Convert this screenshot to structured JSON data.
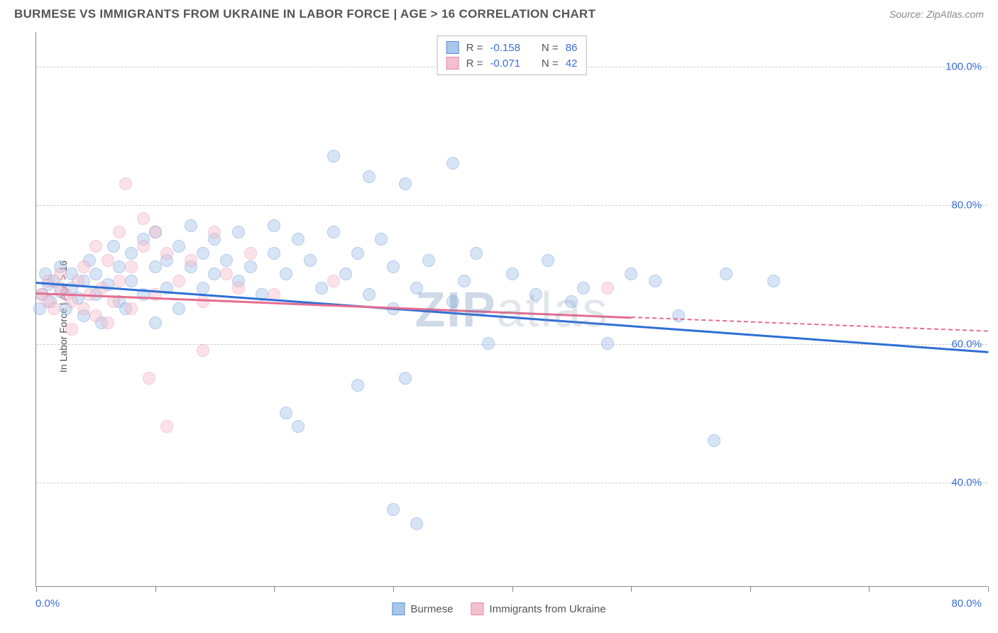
{
  "title": "BURMESE VS IMMIGRANTS FROM UKRAINE IN LABOR FORCE | AGE > 16 CORRELATION CHART",
  "source": "Source: ZipAtlas.com",
  "y_axis_title": "In Labor Force | Age > 16",
  "watermark_bold": "ZIP",
  "watermark_light": "atlas",
  "chart": {
    "type": "scatter",
    "background_color": "#ffffff",
    "grid_color": "#cccccc",
    "axis_color": "#888888",
    "xlim": [
      0,
      80
    ],
    "ylim": [
      25,
      105
    ],
    "x_ticks": [
      0,
      10,
      20,
      30,
      40,
      50,
      60,
      70,
      80
    ],
    "y_gridlines": [
      40,
      60,
      80,
      100
    ],
    "y_tick_labels": [
      "40.0%",
      "60.0%",
      "80.0%",
      "100.0%"
    ],
    "x_label_min": "0.0%",
    "x_label_max": "80.0%",
    "point_radius": 9,
    "point_opacity": 0.45,
    "trend_line_width": 2.5
  },
  "series": [
    {
      "name": "Burmese",
      "color_fill": "#a8c5eb",
      "color_stroke": "#5b8fd6",
      "trend_color": "#2e6fd6",
      "R": "-0.158",
      "N": "86",
      "trend_start": [
        0,
        69
      ],
      "trend_end": [
        80,
        59
      ],
      "trend_ext_end": [
        80,
        59
      ],
      "points": [
        [
          0.5,
          67
        ],
        [
          1,
          68.5
        ],
        [
          1.2,
          66
        ],
        [
          1.5,
          69
        ],
        [
          2,
          67.5
        ],
        [
          2,
          71
        ],
        [
          2.5,
          65
        ],
        [
          3,
          68
        ],
        [
          3,
          70
        ],
        [
          3.5,
          66.5
        ],
        [
          4,
          69
        ],
        [
          4,
          64
        ],
        [
          4.5,
          72
        ],
        [
          5,
          67
        ],
        [
          5,
          70
        ],
        [
          5.5,
          63
        ],
        [
          6,
          68.5
        ],
        [
          6.5,
          74
        ],
        [
          7,
          66
        ],
        [
          7,
          71
        ],
        [
          7.5,
          65
        ],
        [
          8,
          73
        ],
        [
          8,
          69
        ],
        [
          9,
          75
        ],
        [
          9,
          67
        ],
        [
          10,
          76
        ],
        [
          10,
          71
        ],
        [
          10,
          63
        ],
        [
          11,
          72
        ],
        [
          11,
          68
        ],
        [
          12,
          74
        ],
        [
          12,
          65
        ],
        [
          13,
          71
        ],
        [
          13,
          77
        ],
        [
          14,
          68
        ],
        [
          14,
          73
        ],
        [
          15,
          70
        ],
        [
          15,
          75
        ],
        [
          16,
          72
        ],
        [
          17,
          69
        ],
        [
          17,
          76
        ],
        [
          18,
          71
        ],
        [
          19,
          67
        ],
        [
          20,
          77
        ],
        [
          20,
          73
        ],
        [
          21,
          70
        ],
        [
          21,
          50
        ],
        [
          22,
          48
        ],
        [
          22,
          75
        ],
        [
          23,
          72
        ],
        [
          24,
          68
        ],
        [
          25,
          76
        ],
        [
          25,
          87
        ],
        [
          26,
          70
        ],
        [
          27,
          73
        ],
        [
          27,
          54
        ],
        [
          28,
          84
        ],
        [
          28,
          67
        ],
        [
          29,
          75
        ],
        [
          30,
          71
        ],
        [
          30,
          65
        ],
        [
          30,
          36
        ],
        [
          31,
          83
        ],
        [
          31,
          55
        ],
        [
          32,
          34
        ],
        [
          32,
          68
        ],
        [
          33,
          72
        ],
        [
          35,
          86
        ],
        [
          35,
          66
        ],
        [
          36,
          69
        ],
        [
          37,
          73
        ],
        [
          38,
          60
        ],
        [
          40,
          70
        ],
        [
          42,
          67
        ],
        [
          43,
          72
        ],
        [
          45,
          66
        ],
        [
          46,
          68
        ],
        [
          48,
          60
        ],
        [
          50,
          70
        ],
        [
          52,
          69
        ],
        [
          54,
          64
        ],
        [
          57,
          46
        ],
        [
          58,
          70
        ],
        [
          62,
          69
        ],
        [
          0.3,
          65
        ],
        [
          0.8,
          70
        ]
      ]
    },
    {
      "name": "Immigrants from Ukraine",
      "color_fill": "#f4c0cd",
      "color_stroke": "#e88ba5",
      "trend_color": "#e56d8f",
      "R": "-0.071",
      "N": "42",
      "trend_start": [
        0,
        67.5
      ],
      "trend_end": [
        50,
        64
      ],
      "trend_ext_end": [
        80,
        62
      ],
      "points": [
        [
          0.5,
          67
        ],
        [
          1,
          66
        ],
        [
          1,
          69
        ],
        [
          1.5,
          65
        ],
        [
          2,
          68
        ],
        [
          2,
          70
        ],
        [
          2.5,
          67
        ],
        [
          3,
          66
        ],
        [
          3,
          62
        ],
        [
          3.5,
          69
        ],
        [
          4,
          65
        ],
        [
          4,
          71
        ],
        [
          4.5,
          67
        ],
        [
          5,
          64
        ],
        [
          5,
          74
        ],
        [
          5.5,
          68
        ],
        [
          6,
          63
        ],
        [
          6,
          72
        ],
        [
          6.5,
          66
        ],
        [
          7,
          69
        ],
        [
          7,
          76
        ],
        [
          7.5,
          83
        ],
        [
          8,
          65
        ],
        [
          8,
          71
        ],
        [
          9,
          78
        ],
        [
          9,
          74
        ],
        [
          9.5,
          55
        ],
        [
          10,
          67
        ],
        [
          10,
          76
        ],
        [
          11,
          73
        ],
        [
          11,
          48
        ],
        [
          12,
          69
        ],
        [
          13,
          72
        ],
        [
          14,
          66
        ],
        [
          14,
          59
        ],
        [
          15,
          76
        ],
        [
          16,
          70
        ],
        [
          17,
          68
        ],
        [
          18,
          73
        ],
        [
          20,
          67
        ],
        [
          25,
          69
        ],
        [
          48,
          68
        ]
      ]
    }
  ],
  "stat_labels": {
    "R": "R =",
    "N": "N ="
  },
  "legend_labels": [
    "Burmese",
    "Immigrants from Ukraine"
  ]
}
